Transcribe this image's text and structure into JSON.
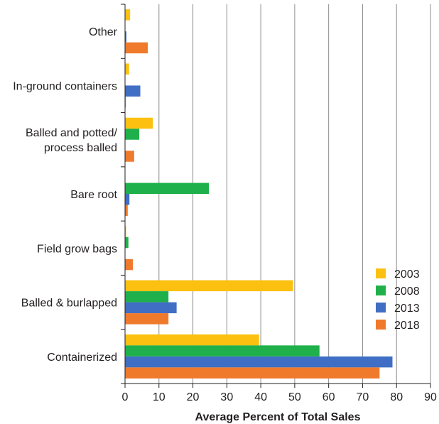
{
  "chart_data": {
    "type": "bar",
    "orientation": "horizontal",
    "title": "",
    "xlabel": "Average Percent of Total Sales",
    "ylabel": "",
    "xlim": [
      0,
      90
    ],
    "x_ticks": [
      0,
      10,
      20,
      30,
      40,
      50,
      60,
      70,
      80,
      90
    ],
    "grid": "vertical",
    "legend_position": "bottom-right",
    "categories": [
      [
        "Other"
      ],
      [
        "In-ground containers"
      ],
      [
        "Balled and potted/",
        "process balled"
      ],
      [
        "Bare root"
      ],
      [
        "Field grow bags"
      ],
      [
        "Balled & burlapped"
      ],
      [
        "Containerized"
      ]
    ],
    "series": [
      {
        "name": "2003",
        "color": "#fcc010",
        "values": [
          1.5,
          1.2,
          8.2,
          0,
          0.3,
          49.5,
          39.5
        ]
      },
      {
        "name": "2008",
        "color": "#1fb04b",
        "values": [
          0,
          0,
          4.2,
          24.7,
          1.0,
          12.8,
          57.3
        ]
      },
      {
        "name": "2013",
        "color": "#3f6ec4",
        "values": [
          0.4,
          4.5,
          0,
          1.3,
          0,
          15.2,
          78.8
        ]
      },
      {
        "name": "2018",
        "color": "#f07a2c",
        "values": [
          6.7,
          0.2,
          2.7,
          0.8,
          2.3,
          12.8,
          75.0
        ]
      }
    ]
  }
}
